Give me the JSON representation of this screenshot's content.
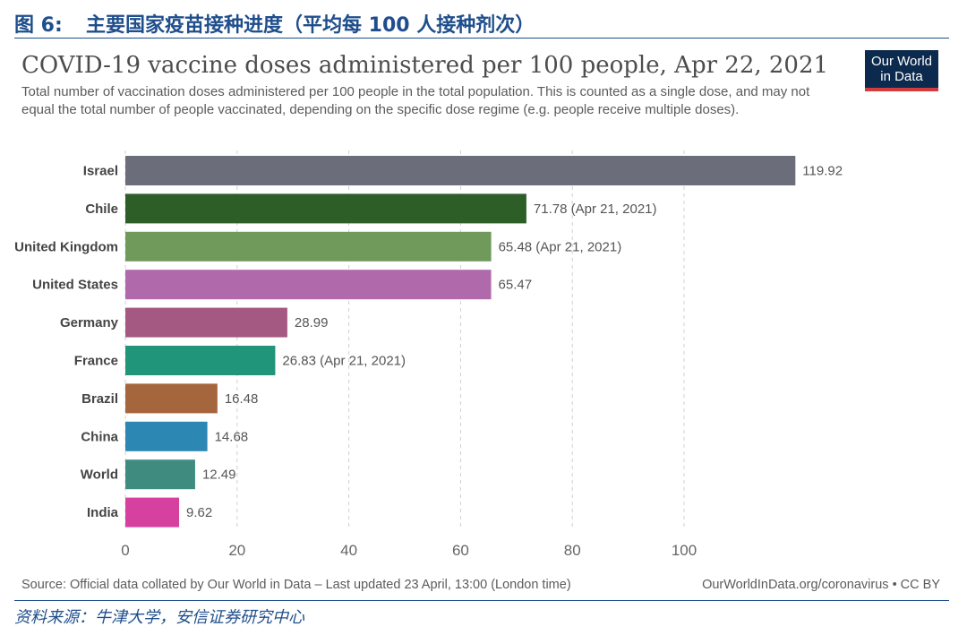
{
  "figure": {
    "number": "图 6:",
    "title": "主要国家疫苗接种进度（平均每 100 人接种剂次）",
    "source": "资料来源：牛津大学，安信证券研究中心"
  },
  "owid": {
    "logo_line1": "Our World",
    "logo_line2": "in Data",
    "source_note": "Source: Official data collated by Our World in Data – Last updated 23 April, 13:00 (London time)",
    "license": "OurWorldInData.org/coronavirus • CC BY"
  },
  "chart_data": {
    "type": "bar",
    "orientation": "horizontal",
    "title": "COVID-19 vaccine doses administered per 100 people, Apr 22, 2021",
    "subtitle": "Total number of vaccination doses administered per 100 people in the total population. This is counted as a single dose, and may not equal the total number of people vaccinated, depending on the specific dose regime (e.g. people receive multiple doses).",
    "categories": [
      "Israel",
      "Chile",
      "United Kingdom",
      "United States",
      "Germany",
      "France",
      "Brazil",
      "China",
      "World",
      "India"
    ],
    "values": [
      119.92,
      71.78,
      65.48,
      65.47,
      28.99,
      26.83,
      16.48,
      14.68,
      12.49,
      9.62
    ],
    "value_labels": [
      "119.92",
      "71.78 (Apr 21, 2021)",
      "65.48 (Apr 21, 2021)",
      "65.47",
      "28.99",
      "26.83 (Apr 21, 2021)",
      "16.48",
      "14.68",
      "12.49",
      "9.62"
    ],
    "colors": [
      "#6b6e7a",
      "#2e5e28",
      "#6f9a5c",
      "#b06aab",
      "#a35981",
      "#21957a",
      "#a5663e",
      "#2d87b3",
      "#3f8b80",
      "#d6409e"
    ],
    "xticks": [
      0,
      20,
      40,
      60,
      80,
      100
    ],
    "xlim": [
      0,
      120
    ],
    "grid": true,
    "xlabel": "",
    "ylabel": ""
  }
}
